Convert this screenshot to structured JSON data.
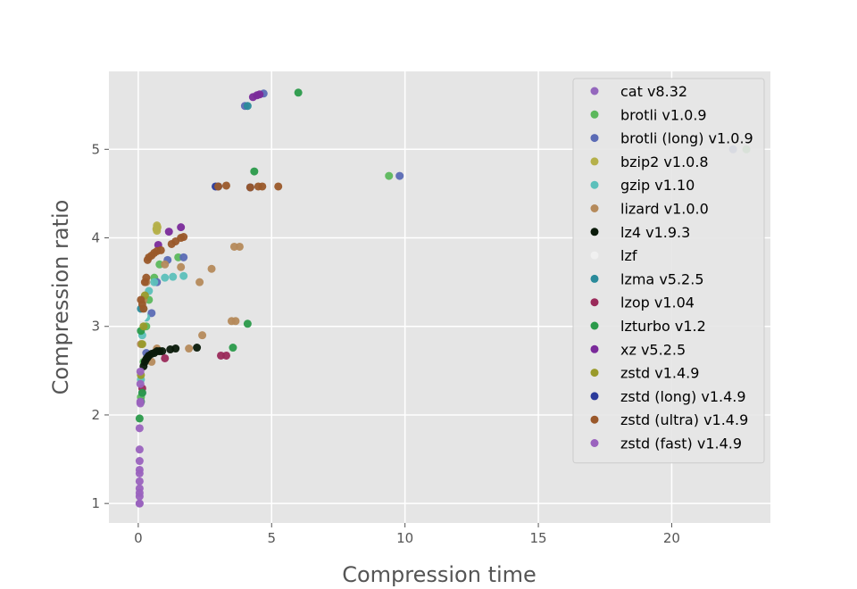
{
  "chart_data": {
    "type": "scatter",
    "title": "",
    "xlabel": "Compression time",
    "ylabel": "Compression ratio",
    "xlim": [
      -1.1,
      23.7
    ],
    "ylim": [
      0.78,
      5.88
    ],
    "xticks": [
      0,
      5,
      10,
      15,
      20
    ],
    "yticks": [
      1,
      2,
      3,
      4,
      5
    ],
    "grid": true,
    "legend_position": "top-right",
    "series": [
      {
        "name": "cat v8.32",
        "color": "#9467bd",
        "points": [
          [
            0.05,
            1.0
          ]
        ]
      },
      {
        "name": "brotli v1.0.9",
        "color": "#5cb85c",
        "points": [
          [
            0.1,
            2.2
          ],
          [
            0.2,
            2.6
          ],
          [
            0.3,
            3.0
          ],
          [
            0.4,
            3.3
          ],
          [
            0.6,
            3.55
          ],
          [
            0.8,
            3.7
          ],
          [
            1.5,
            3.78
          ],
          [
            9.4,
            4.7
          ],
          [
            22.8,
            5.0
          ]
        ]
      },
      {
        "name": "brotli (long) v1.0.9",
        "color": "#5b6bb5",
        "points": [
          [
            0.15,
            2.25
          ],
          [
            0.3,
            2.7
          ],
          [
            0.5,
            3.15
          ],
          [
            0.7,
            3.5
          ],
          [
            1.1,
            3.75
          ],
          [
            1.7,
            3.78
          ],
          [
            4.0,
            5.49
          ],
          [
            4.7,
            5.63
          ],
          [
            9.8,
            4.7
          ],
          [
            22.3,
            5.0
          ]
        ]
      },
      {
        "name": "bzip2 v1.0.8",
        "color": "#b5b04a",
        "points": [
          [
            0.7,
            4.08
          ],
          [
            0.7,
            4.11
          ],
          [
            0.7,
            4.14
          ],
          [
            0.68,
            4.1
          ],
          [
            0.72,
            4.12
          ]
        ]
      },
      {
        "name": "gzip v1.10",
        "color": "#5cc0bb",
        "points": [
          [
            0.1,
            2.4
          ],
          [
            0.15,
            2.9
          ],
          [
            0.2,
            3.2
          ],
          [
            0.3,
            3.1
          ],
          [
            0.4,
            3.4
          ],
          [
            0.6,
            3.5
          ],
          [
            1.0,
            3.55
          ],
          [
            1.3,
            3.56
          ],
          [
            1.7,
            3.57
          ]
        ]
      },
      {
        "name": "lizard v1.0.0",
        "color": "#b58a5b",
        "points": [
          [
            0.1,
            2.8
          ],
          [
            0.2,
            3.3
          ],
          [
            0.3,
            3.5
          ],
          [
            0.5,
            2.6
          ],
          [
            0.7,
            2.75
          ],
          [
            1.0,
            3.7
          ],
          [
            1.6,
            3.67
          ],
          [
            1.9,
            2.75
          ],
          [
            2.3,
            3.5
          ],
          [
            2.4,
            2.9
          ],
          [
            2.75,
            3.65
          ],
          [
            3.5,
            3.06
          ],
          [
            3.65,
            3.06
          ],
          [
            3.6,
            3.9
          ],
          [
            3.8,
            3.9
          ]
        ]
      },
      {
        "name": "lz4 v1.9.3",
        "color": "#0a1a0a",
        "points": [
          [
            0.2,
            2.55
          ],
          [
            0.25,
            2.6
          ],
          [
            0.3,
            2.63
          ],
          [
            0.35,
            2.65
          ],
          [
            0.4,
            2.67
          ],
          [
            0.5,
            2.69
          ],
          [
            0.6,
            2.7
          ],
          [
            0.7,
            2.72
          ],
          [
            0.8,
            2.72
          ],
          [
            0.9,
            2.72
          ],
          [
            1.2,
            2.74
          ],
          [
            1.4,
            2.75
          ],
          [
            2.2,
            2.76
          ]
        ]
      },
      {
        "name": "lzf",
        "color": "#f0f0f0",
        "points": [
          [
            0.15,
            3.1
          ],
          [
            0.2,
            3.12
          ]
        ]
      },
      {
        "name": "lzma v5.2.5",
        "color": "#2a8a9a",
        "points": [
          [
            0.1,
            3.2
          ],
          [
            4.1,
            5.49
          ]
        ]
      },
      {
        "name": "lzop v1.04",
        "color": "#9a2a5a",
        "points": [
          [
            0.15,
            2.3
          ],
          [
            1.0,
            2.64
          ],
          [
            3.1,
            2.67
          ],
          [
            3.3,
            2.67
          ]
        ]
      },
      {
        "name": "lzturbo v1.2",
        "color": "#2a9a4a",
        "points": [
          [
            0.05,
            1.96
          ],
          [
            0.1,
            2.15
          ],
          [
            0.15,
            2.25
          ],
          [
            0.1,
            2.95
          ],
          [
            3.55,
            2.76
          ],
          [
            4.1,
            3.03
          ],
          [
            4.35,
            4.75
          ],
          [
            6.0,
            5.64
          ]
        ]
      },
      {
        "name": "xz v5.2.5",
        "color": "#7a2a9a",
        "points": [
          [
            0.75,
            3.92
          ],
          [
            1.15,
            4.07
          ],
          [
            1.6,
            4.12
          ],
          [
            4.3,
            5.59
          ],
          [
            4.45,
            5.61
          ],
          [
            4.55,
            5.62
          ]
        ]
      },
      {
        "name": "zstd v1.4.9",
        "color": "#999a2a",
        "points": [
          [
            0.1,
            2.45
          ],
          [
            0.15,
            2.8
          ],
          [
            0.2,
            3.0
          ],
          [
            0.25,
            3.35
          ]
        ]
      },
      {
        "name": "zstd (long) v1.4.9",
        "color": "#2a3a9a",
        "points": [
          [
            2.9,
            4.58
          ],
          [
            3.0,
            4.58
          ],
          [
            4.2,
            4.57
          ]
        ]
      },
      {
        "name": "zstd (ultra) v1.4.9",
        "color": "#9a582a",
        "points": [
          [
            0.1,
            3.3
          ],
          [
            0.15,
            3.25
          ],
          [
            0.2,
            3.2
          ],
          [
            0.25,
            3.5
          ],
          [
            0.3,
            3.55
          ],
          [
            0.35,
            3.75
          ],
          [
            0.4,
            3.78
          ],
          [
            0.5,
            3.8
          ],
          [
            0.6,
            3.83
          ],
          [
            0.7,
            3.85
          ],
          [
            0.85,
            3.86
          ],
          [
            1.25,
            3.93
          ],
          [
            1.4,
            3.96
          ],
          [
            1.6,
            4.0
          ],
          [
            1.7,
            4.01
          ],
          [
            3.0,
            4.58
          ],
          [
            3.3,
            4.59
          ],
          [
            4.2,
            4.57
          ],
          [
            4.5,
            4.58
          ],
          [
            4.65,
            4.58
          ],
          [
            5.25,
            4.58
          ]
        ]
      },
      {
        "name": "zstd (fast) v1.4.9",
        "color": "#9a62be",
        "points": [
          [
            0.05,
            1.0
          ],
          [
            0.05,
            1.08
          ],
          [
            0.05,
            1.12
          ],
          [
            0.05,
            1.17
          ],
          [
            0.05,
            1.25
          ],
          [
            0.05,
            1.34
          ],
          [
            0.05,
            1.38
          ],
          [
            0.05,
            1.48
          ],
          [
            0.05,
            1.61
          ],
          [
            0.05,
            1.85
          ],
          [
            0.08,
            2.13
          ],
          [
            0.08,
            2.15
          ],
          [
            0.08,
            2.35
          ],
          [
            0.08,
            2.49
          ]
        ]
      }
    ]
  }
}
